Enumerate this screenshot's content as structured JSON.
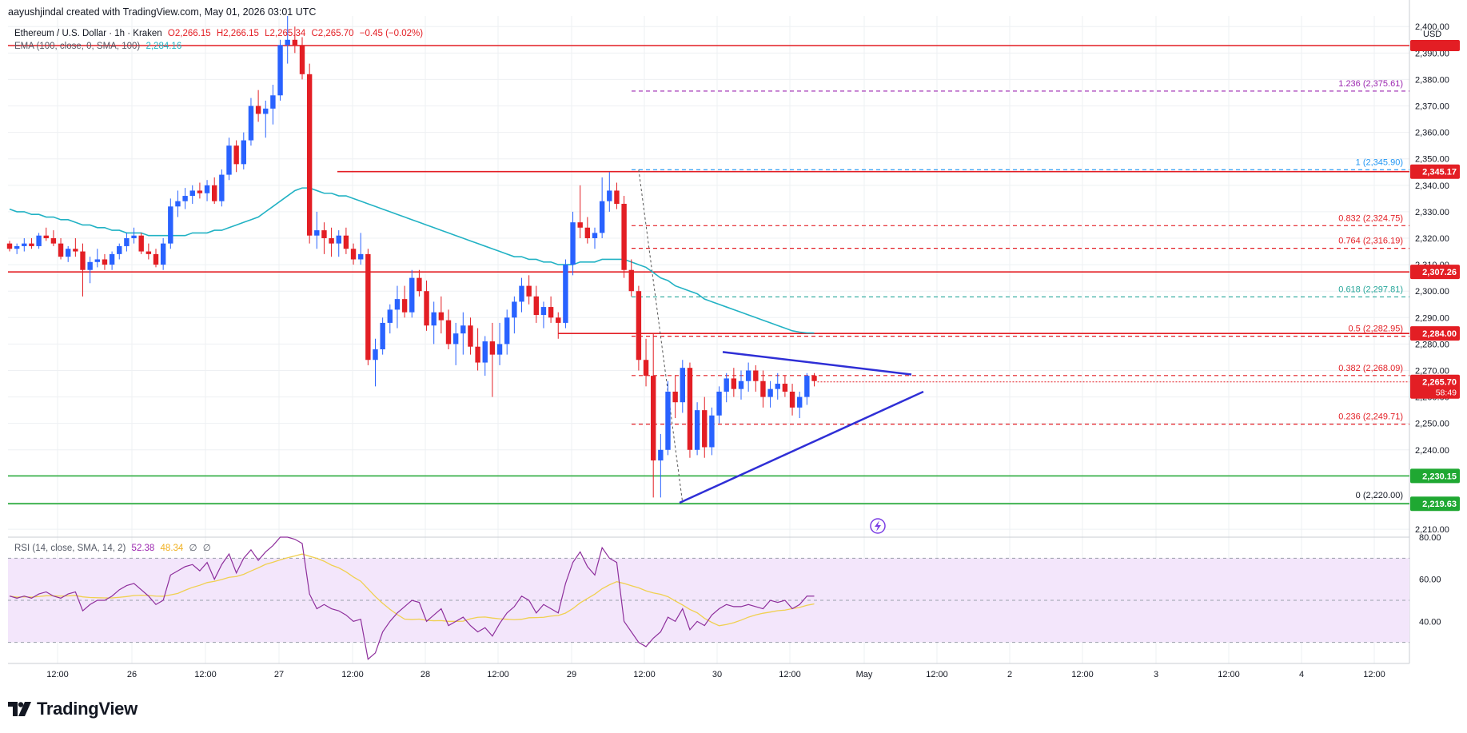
{
  "header": {
    "credit": "aayushjindal created with TradingView.com, May 01, 2026 03:01 UTC",
    "symbol": "Ethereum / U.S. Dollar · 1h · Kraken",
    "open": "O2,266.15",
    "high": "H2,266.15",
    "low": "L2,265.34",
    "close": "C2,265.70",
    "change": "−0.45 (−0.02%)",
    "ema_label": "EMA (100, close, 0, SMA, 100)",
    "ema_value": "2,284.16"
  },
  "rsi_legend": {
    "label": "RSI (14, close, SMA, 14, 2)",
    "rsi_value": "52.38",
    "sma_value": "48.34",
    "extra1": "∅",
    "extra2": "∅"
  },
  "currency": "USD",
  "brand": "TradingView",
  "colors": {
    "up": "#2962ff",
    "down": "#e31e24",
    "ema": "#22b2c4",
    "fib": "#e31e24",
    "fib_ext": "#9c27b0",
    "fib_618": "#26a69a",
    "support": "#1fa832",
    "trendline": "#2f2fd6",
    "rsi_line": "#8e2f9c",
    "rsi_sma": "#f0d050",
    "rsi_band": "#f3e6fb"
  },
  "chart_data": {
    "type": "candlestick",
    "y_ticks": [
      "2,210.00",
      "2,220.00",
      "2,230.00",
      "2,240.00",
      "2,250.00",
      "2,260.00",
      "2,270.00",
      "2,280.00",
      "2,290.00",
      "2,300.00",
      "2,310.00",
      "2,320.00",
      "2,330.00",
      "2,340.00",
      "2,350.00",
      "2,360.00",
      "2,370.00",
      "2,380.00",
      "2,390.00",
      "2,400.00"
    ],
    "ylim": [
      2207,
      2404
    ],
    "x_ticks": [
      "12:00",
      "26",
      "12:00",
      "27",
      "12:00",
      "28",
      "12:00",
      "29",
      "12:00",
      "30",
      "12:00",
      "May",
      "12:00",
      "2",
      "12:00",
      "3",
      "12:00",
      "4",
      "12:00"
    ],
    "horizontal_levels": [
      {
        "label": "2,345.17",
        "value": 2345.17,
        "color": "#e31e24"
      },
      {
        "label": "2,307.26",
        "value": 2307.26,
        "color": "#e31e24"
      },
      {
        "label": "2,284.00",
        "value": 2284.0,
        "color": "#e31e24"
      },
      {
        "label": "2,230.15",
        "value": 2230.15,
        "color": "#1fa832"
      },
      {
        "label": "2,219.63",
        "value": 2219.63,
        "color": "#1fa832"
      }
    ],
    "last_price": {
      "label": "2,265.70",
      "countdown": "58:49",
      "value": 2265.7
    },
    "fib_levels": [
      {
        "label": "1.236 (2,375.61)",
        "value": 2375.61,
        "color": "#9c27b0"
      },
      {
        "label": "1 (2,345.90)",
        "value": 2345.9,
        "color": "#2196f3"
      },
      {
        "label": "0.832 (2,324.75)",
        "value": 2324.75,
        "color": "#e31e24"
      },
      {
        "label": "0.764 (2,316.19)",
        "value": 2316.19,
        "color": "#e31e24"
      },
      {
        "label": "0.618 (2,297.81)",
        "value": 2297.81,
        "color": "#26a69a"
      },
      {
        "label": "0.5 (2,282.95)",
        "value": 2282.95,
        "color": "#e31e24"
      },
      {
        "label": "0.382 (2,268.09)",
        "value": 2268.09,
        "color": "#e31e24"
      },
      {
        "label": "0.236 (2,249.71)",
        "value": 2249.71,
        "color": "#e31e24"
      },
      {
        "label": "0 (2,220.00)",
        "value": 2220.0,
        "color": "#131722"
      }
    ],
    "candles": [
      [
        2318,
        2319,
        2315,
        2316
      ],
      [
        2316,
        2318,
        2314,
        2317
      ],
      [
        2317,
        2320,
        2315,
        2318
      ],
      [
        2318,
        2320,
        2316,
        2317
      ],
      [
        2317,
        2322,
        2316,
        2321
      ],
      [
        2321,
        2324,
        2319,
        2320
      ],
      [
        2320,
        2323,
        2317,
        2318
      ],
      [
        2318,
        2320,
        2312,
        2313
      ],
      [
        2313,
        2317,
        2311,
        2316
      ],
      [
        2316,
        2320,
        2313,
        2315
      ],
      [
        2315,
        2318,
        2298,
        2308
      ],
      [
        2308,
        2313,
        2303,
        2311
      ],
      [
        2311,
        2316,
        2309,
        2312
      ],
      [
        2312,
        2314,
        2308,
        2310
      ],
      [
        2310,
        2315,
        2308,
        2314
      ],
      [
        2314,
        2318,
        2312,
        2317
      ],
      [
        2317,
        2322,
        2315,
        2320
      ],
      [
        2320,
        2324,
        2318,
        2321
      ],
      [
        2321,
        2322,
        2314,
        2315
      ],
      [
        2315,
        2318,
        2312,
        2314
      ],
      [
        2314,
        2316,
        2309,
        2310
      ],
      [
        2310,
        2320,
        2308,
        2318
      ],
      [
        2318,
        2335,
        2316,
        2332
      ],
      [
        2332,
        2338,
        2328,
        2334
      ],
      [
        2334,
        2339,
        2331,
        2336
      ],
      [
        2336,
        2340,
        2333,
        2338
      ],
      [
        2338,
        2341,
        2335,
        2337
      ],
      [
        2337,
        2342,
        2334,
        2340
      ],
      [
        2340,
        2343,
        2333,
        2334
      ],
      [
        2334,
        2346,
        2332,
        2344
      ],
      [
        2344,
        2358,
        2342,
        2355
      ],
      [
        2355,
        2357,
        2345,
        2348
      ],
      [
        2348,
        2360,
        2346,
        2357
      ],
      [
        2357,
        2373,
        2355,
        2370
      ],
      [
        2370,
        2376,
        2364,
        2367
      ],
      [
        2367,
        2372,
        2358,
        2369
      ],
      [
        2369,
        2378,
        2363,
        2374
      ],
      [
        2374,
        2395,
        2372,
        2393
      ],
      [
        2393,
        2404,
        2386,
        2395
      ],
      [
        2395,
        2400,
        2390,
        2393
      ],
      [
        2393,
        2396,
        2380,
        2382
      ],
      [
        2382,
        2386,
        2318,
        2321
      ],
      [
        2321,
        2330,
        2316,
        2323
      ],
      [
        2323,
        2326,
        2314,
        2320
      ],
      [
        2320,
        2324,
        2313,
        2318
      ],
      [
        2318,
        2323,
        2313,
        2321
      ],
      [
        2321,
        2324,
        2314,
        2316
      ],
      [
        2316,
        2318,
        2310,
        2312
      ],
      [
        2312,
        2322,
        2310,
        2314
      ],
      [
        2314,
        2316,
        2272,
        2274
      ],
      [
        2274,
        2282,
        2264,
        2278
      ],
      [
        2278,
        2290,
        2276,
        2288
      ],
      [
        2288,
        2295,
        2284,
        2293
      ],
      [
        2293,
        2302,
        2286,
        2297
      ],
      [
        2297,
        2302,
        2290,
        2292
      ],
      [
        2292,
        2308,
        2290,
        2305
      ],
      [
        2305,
        2308,
        2298,
        2300
      ],
      [
        2300,
        2304,
        2285,
        2287
      ],
      [
        2287,
        2296,
        2280,
        2292
      ],
      [
        2292,
        2298,
        2284,
        2289
      ],
      [
        2289,
        2293,
        2278,
        2280
      ],
      [
        2280,
        2288,
        2272,
        2284
      ],
      [
        2284,
        2292,
        2276,
        2287
      ],
      [
        2287,
        2290,
        2276,
        2279
      ],
      [
        2279,
        2286,
        2270,
        2273
      ],
      [
        2273,
        2283,
        2268,
        2281
      ],
      [
        2281,
        2288,
        2260,
        2276
      ],
      [
        2276,
        2288,
        2272,
        2280
      ],
      [
        2280,
        2293,
        2276,
        2290
      ],
      [
        2290,
        2298,
        2284,
        2296
      ],
      [
        2296,
        2305,
        2292,
        2302
      ],
      [
        2302,
        2306,
        2295,
        2298
      ],
      [
        2298,
        2302,
        2288,
        2291
      ],
      [
        2291,
        2296,
        2286,
        2294
      ],
      [
        2294,
        2298,
        2288,
        2290
      ],
      [
        2290,
        2292,
        2282,
        2288
      ],
      [
        2288,
        2312,
        2286,
        2310
      ],
      [
        2310,
        2330,
        2306,
        2326
      ],
      [
        2326,
        2340,
        2320,
        2324
      ],
      [
        2324,
        2328,
        2318,
        2320
      ],
      [
        2320,
        2324,
        2316,
        2322
      ],
      [
        2322,
        2343,
        2320,
        2334
      ],
      [
        2334,
        2345,
        2330,
        2338
      ],
      [
        2338,
        2341,
        2331,
        2333
      ],
      [
        2333,
        2336,
        2305,
        2308
      ],
      [
        2308,
        2312,
        2298,
        2300
      ],
      [
        2300,
        2302,
        2270,
        2274
      ],
      [
        2274,
        2282,
        2264,
        2268
      ],
      [
        2268,
        2284,
        2222,
        2236
      ],
      [
        2236,
        2246,
        2222,
        2240
      ],
      [
        2240,
        2266,
        2238,
        2262
      ],
      [
        2262,
        2268,
        2252,
        2258
      ],
      [
        2258,
        2274,
        2254,
        2271
      ],
      [
        2271,
        2273,
        2237,
        2240
      ],
      [
        2240,
        2258,
        2238,
        2255
      ],
      [
        2255,
        2260,
        2237,
        2241
      ],
      [
        2241,
        2256,
        2238,
        2253
      ],
      [
        2253,
        2264,
        2250,
        2262
      ],
      [
        2262,
        2269,
        2258,
        2267
      ],
      [
        2267,
        2271,
        2260,
        2263
      ],
      [
        2263,
        2270,
        2259,
        2266
      ],
      [
        2266,
        2273,
        2262,
        2270
      ],
      [
        2270,
        2272,
        2262,
        2266
      ],
      [
        2266,
        2270,
        2256,
        2260
      ],
      [
        2260,
        2266,
        2256,
        2263
      ],
      [
        2263,
        2269,
        2259,
        2265
      ],
      [
        2265,
        2268,
        2260,
        2262
      ],
      [
        2262,
        2265,
        2253,
        2256
      ],
      [
        2256,
        2262,
        2252,
        2260
      ],
      [
        2260,
        2269,
        2257,
        2268
      ],
      [
        2268,
        2269,
        2264,
        2266
      ]
    ],
    "ema": [
      2331,
      2330,
      2330,
      2329,
      2329,
      2328,
      2328,
      2327,
      2327,
      2326,
      2325,
      2325,
      2324,
      2324,
      2323,
      2323,
      2322,
      2322,
      2322,
      2321,
      2321,
      2321,
      2321,
      2321,
      2321,
      2322,
      2322,
      2322,
      2323,
      2323,
      2324,
      2325,
      2326,
      2327,
      2328,
      2330,
      2332,
      2334,
      2336,
      2338,
      2339,
      2339,
      2338,
      2337,
      2337,
      2336,
      2336,
      2335,
      2334,
      2333,
      2332,
      2331,
      2330,
      2329,
      2328,
      2327,
      2326,
      2325,
      2324,
      2323,
      2322,
      2321,
      2320,
      2319,
      2318,
      2317,
      2316,
      2315,
      2314,
      2313,
      2313,
      2312,
      2312,
      2311,
      2311,
      2310,
      2310,
      2310,
      2311,
      2311,
      2311,
      2312,
      2312,
      2312,
      2312,
      2311,
      2310,
      2309,
      2307,
      2305,
      2304,
      2302,
      2301,
      2300,
      2299,
      2297,
      2296,
      2295,
      2294,
      2293,
      2292,
      2291,
      2290,
      2289,
      2288,
      2287,
      2286,
      2285,
      2284.5,
      2284.2,
      2284.16
    ],
    "rsi": {
      "ylim": [
        20,
        80
      ],
      "y_ticks": [
        "40.00",
        "60.00",
        "80.00"
      ],
      "band": [
        30,
        70
      ],
      "values": [
        52,
        51,
        52,
        51,
        53,
        54,
        52,
        51,
        53,
        54,
        45,
        48,
        50,
        50,
        52,
        55,
        57,
        58,
        55,
        52,
        48,
        50,
        62,
        64,
        66,
        67,
        64,
        68,
        60,
        67,
        72,
        63,
        70,
        74,
        69,
        73,
        76,
        80,
        80,
        79,
        77,
        53,
        46,
        48,
        46,
        45,
        43,
        40,
        41,
        22,
        25,
        35,
        40,
        44,
        47,
        50,
        49,
        40,
        43,
        46,
        38,
        40,
        42,
        38,
        35,
        37,
        33,
        39,
        44,
        47,
        52,
        50,
        44,
        48,
        46,
        44,
        58,
        68,
        73,
        66,
        62,
        75,
        70,
        68,
        40,
        35,
        30,
        28,
        32,
        35,
        42,
        40,
        46,
        36,
        40,
        38,
        43,
        46,
        48,
        47,
        47,
        48,
        47,
        46,
        50,
        49,
        50,
        46,
        48,
        52,
        52
      ]
    }
  }
}
